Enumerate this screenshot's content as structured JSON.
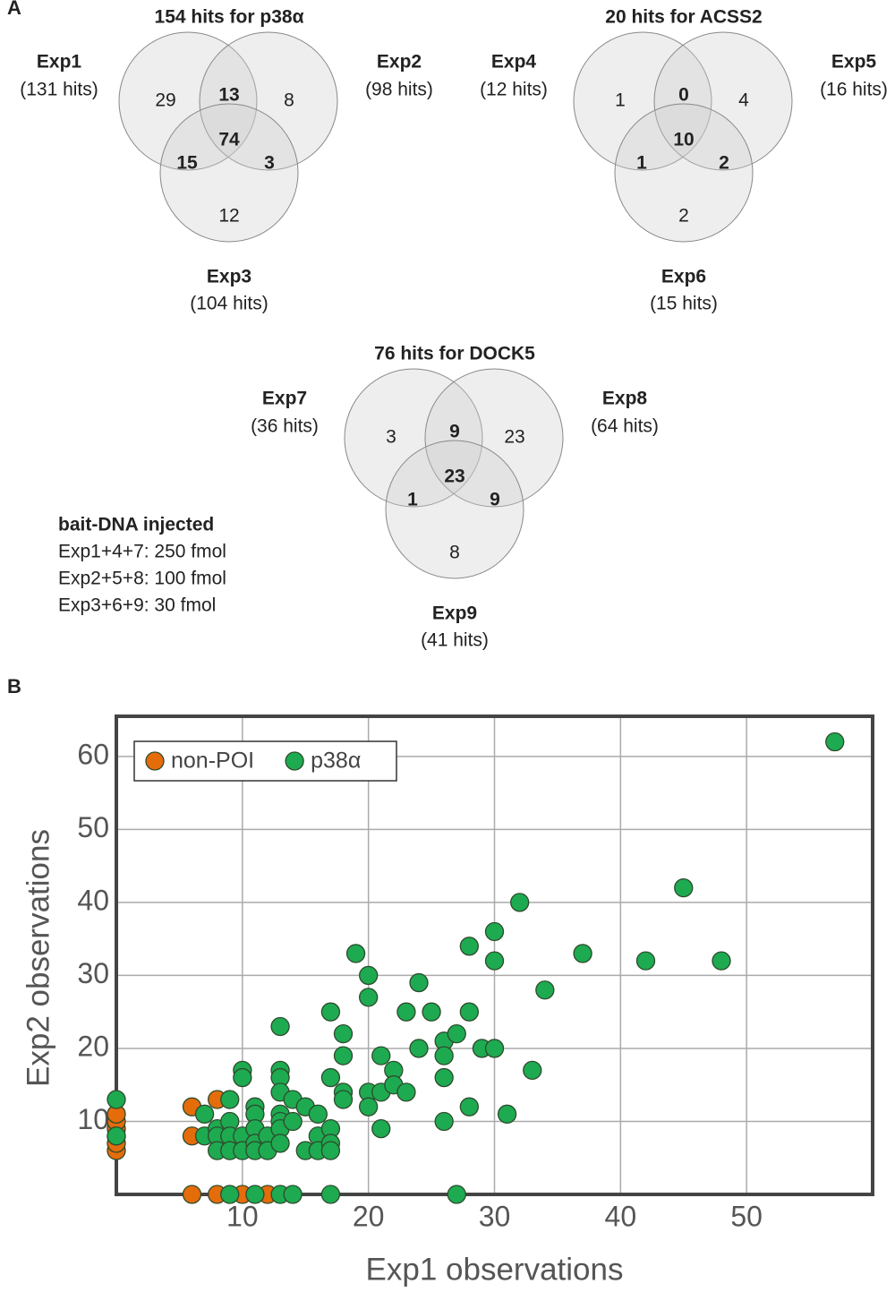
{
  "chart_data": [
    {
      "type": "venn",
      "panel": "A",
      "title": "154 hits for p38α",
      "sets": [
        {
          "name": "Exp1",
          "label": "(131 hits)"
        },
        {
          "name": "Exp2",
          "label": "(98 hits)"
        },
        {
          "name": "Exp3",
          "label": "(104 hits)"
        }
      ],
      "regions": [
        "1",
        "2",
        "3",
        "1+2",
        "1+3",
        "2+3",
        "1+2+3"
      ],
      "values": [
        29,
        8,
        12,
        13,
        15,
        3,
        74
      ]
    },
    {
      "type": "venn",
      "title": "20 hits for ACSS2",
      "sets": [
        {
          "name": "Exp4",
          "label": "(12 hits)"
        },
        {
          "name": "Exp5",
          "label": "(16 hits)"
        },
        {
          "name": "Exp6",
          "label": "(15 hits)"
        }
      ],
      "regions": [
        "4",
        "5",
        "6",
        "4+5",
        "4+6",
        "5+6",
        "4+5+6"
      ],
      "values": [
        1,
        4,
        2,
        0,
        1,
        2,
        10
      ]
    },
    {
      "type": "venn",
      "title": "76 hits for DOCK5",
      "sets": [
        {
          "name": "Exp7",
          "label": "(36 hits)"
        },
        {
          "name": "Exp8",
          "label": "(64 hits)"
        },
        {
          "name": "Exp9",
          "label": "(41 hits)"
        }
      ],
      "regions": [
        "7",
        "8",
        "9",
        "7+8",
        "7+9",
        "8+9",
        "7+8+9"
      ],
      "values": [
        3,
        23,
        8,
        9,
        1,
        9,
        23
      ],
      "annotations": [
        "bait-DNA injected",
        "Exp1+4+7: 250 fmol",
        "Exp2+5+8: 100 fmol",
        "Exp3+6+9: 30 fmol"
      ]
    },
    {
      "type": "scatter",
      "panel": "B",
      "xlabel": "Exp1 observations",
      "ylabel": "Exp2 observations",
      "xlim": [
        0,
        60
      ],
      "ylim": [
        0,
        65.5
      ],
      "xticks": [
        10,
        20,
        30,
        40,
        50
      ],
      "yticks": [
        10,
        20,
        30,
        40,
        50,
        60
      ],
      "grid": true,
      "legend": "upper-left",
      "series": [
        {
          "name": "non-POI",
          "color": "#e46c0a",
          "x": [
            0,
            0,
            0,
            0,
            0,
            0,
            6,
            8,
            6,
            6,
            8,
            10,
            12
          ],
          "values": [
            6,
            7,
            8,
            9,
            10,
            11,
            12,
            13,
            8,
            0,
            0,
            0,
            0
          ]
        },
        {
          "name": "p38α",
          "color": "#1eaa50",
          "x": [
            0,
            0,
            7,
            7,
            8,
            8,
            8,
            9,
            9,
            9,
            9,
            10,
            10,
            10,
            10,
            11,
            11,
            11,
            11,
            11,
            12,
            12,
            13,
            13,
            13,
            13,
            13,
            13,
            13,
            13,
            14,
            14,
            15,
            15,
            16,
            16,
            16,
            17,
            17,
            17,
            17,
            17,
            18,
            18,
            18,
            18,
            19,
            20,
            20,
            20,
            20,
            21,
            21,
            21,
            22,
            22,
            23,
            23,
            24,
            24,
            25,
            26,
            26,
            26,
            26,
            27,
            28,
            28,
            28,
            29,
            30,
            30,
            30,
            31,
            32,
            33,
            34,
            37,
            42,
            45,
            48,
            57,
            9,
            11,
            13,
            14,
            17,
            27
          ],
          "values": [
            13,
            8,
            11,
            8,
            9,
            8,
            6,
            13,
            10,
            8,
            6,
            17,
            16,
            8,
            6,
            12,
            11,
            9,
            7,
            6,
            8,
            6,
            23,
            17,
            16,
            14,
            11,
            10,
            9,
            7,
            13,
            10,
            12,
            6,
            11,
            8,
            6,
            16,
            9,
            7,
            6,
            25,
            22,
            19,
            14,
            13,
            33,
            30,
            27,
            14,
            12,
            19,
            14,
            9,
            17,
            15,
            25,
            14,
            29,
            20,
            25,
            21,
            19,
            16,
            10,
            22,
            34,
            25,
            12,
            20,
            36,
            32,
            20,
            11,
            40,
            17,
            28,
            33,
            32,
            42,
            32,
            62,
            0,
            0,
            0,
            0,
            0,
            0
          ]
        }
      ]
    }
  ]
}
